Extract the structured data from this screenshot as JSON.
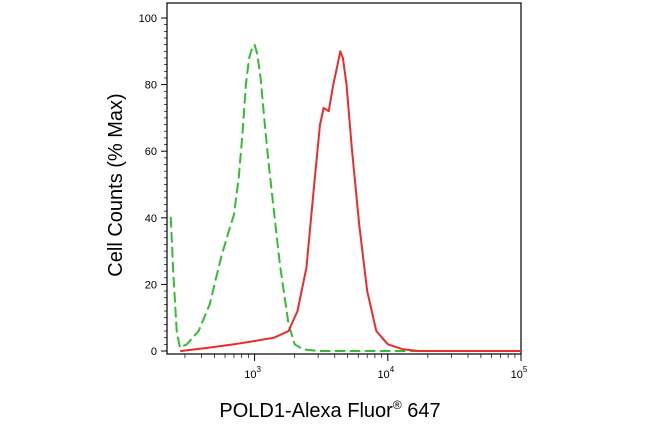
{
  "chart_data": {
    "type": "line",
    "title": "",
    "xlabel": "POLD1-Alexa Fluor",
    "xlabel_mark": "®",
    "xlabel_suffix": " 647",
    "ylabel": "Cell Counts (% Max)",
    "x_scale": "log",
    "xlim": [
      220,
      100000
    ],
    "ylim": [
      0,
      100
    ],
    "y_ticks": [
      0,
      20,
      40,
      60,
      80,
      100
    ],
    "y_tick_labels": [
      "0",
      "20",
      "40",
      "60",
      "80",
      "100"
    ],
    "x_ticks": [
      1000,
      10000,
      100000
    ],
    "x_tick_labels": [
      {
        "base": "10",
        "exp": "3"
      },
      {
        "base": "10",
        "exp": "4"
      },
      {
        "base": "10",
        "exp": "5"
      }
    ],
    "grid": false,
    "series": [
      {
        "color": "#2fbf2f",
        "dash": "dashed",
        "points": [
          [
            235,
            40
          ],
          [
            245,
            24
          ],
          [
            260,
            6
          ],
          [
            275,
            1
          ],
          [
            310,
            2
          ],
          [
            380,
            6
          ],
          [
            460,
            14
          ],
          [
            560,
            28
          ],
          [
            640,
            36
          ],
          [
            700,
            41
          ],
          [
            760,
            52
          ],
          [
            810,
            65
          ],
          [
            860,
            80
          ],
          [
            910,
            88
          ],
          [
            960,
            91
          ],
          [
            1000,
            92
          ],
          [
            1050,
            89
          ],
          [
            1110,
            82
          ],
          [
            1180,
            70
          ],
          [
            1270,
            57
          ],
          [
            1380,
            44
          ],
          [
            1550,
            26
          ],
          [
            1800,
            8
          ],
          [
            2000,
            2
          ],
          [
            2300,
            0.5
          ],
          [
            3000,
            0
          ],
          [
            10000,
            0
          ],
          [
            100000,
            0
          ]
        ]
      },
      {
        "color": "#ee2a2a",
        "dash": "solid",
        "points": [
          [
            280,
            0
          ],
          [
            450,
            1
          ],
          [
            700,
            2
          ],
          [
            1000,
            3
          ],
          [
            1400,
            4
          ],
          [
            1800,
            6
          ],
          [
            2100,
            12
          ],
          [
            2450,
            25
          ],
          [
            2800,
            50
          ],
          [
            3100,
            68
          ],
          [
            3300,
            73
          ],
          [
            3600,
            72
          ],
          [
            3900,
            80
          ],
          [
            4200,
            86
          ],
          [
            4400,
            90
          ],
          [
            4600,
            88
          ],
          [
            4900,
            80
          ],
          [
            5400,
            60
          ],
          [
            6100,
            38
          ],
          [
            7000,
            18
          ],
          [
            8200,
            6
          ],
          [
            10000,
            2
          ],
          [
            13000,
            0.5
          ],
          [
            17000,
            0
          ],
          [
            30000,
            0
          ],
          [
            100000,
            0
          ]
        ]
      }
    ]
  }
}
